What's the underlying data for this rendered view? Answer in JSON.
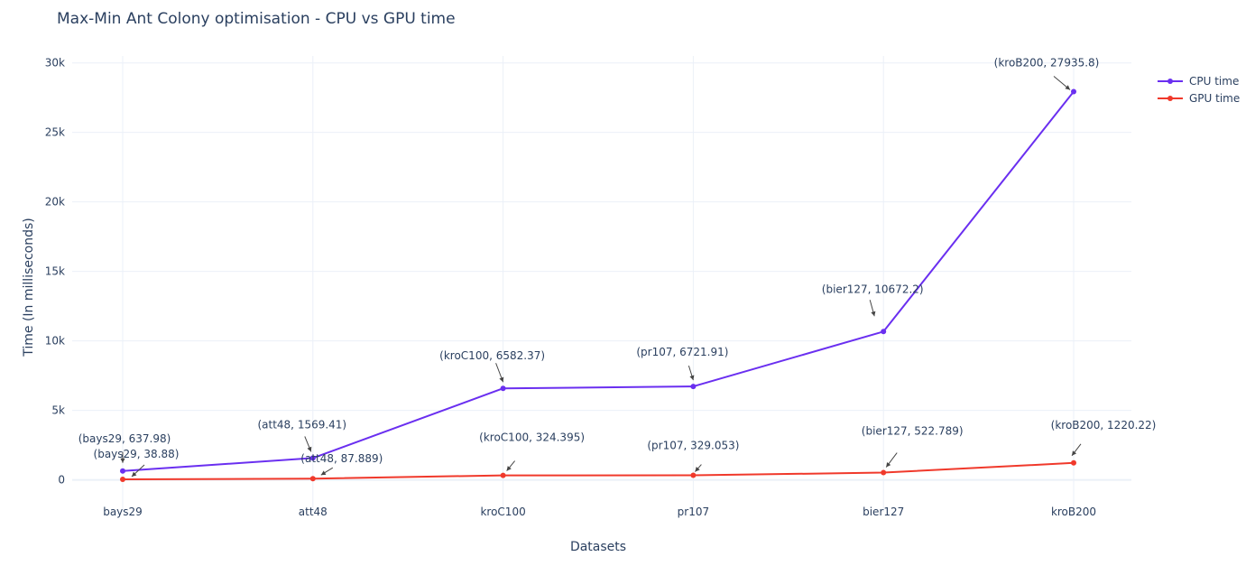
{
  "chart_data": {
    "type": "line",
    "title": "Max-Min Ant Colony optimisation - CPU vs GPU time",
    "xlabel": "Datasets",
    "ylabel": "Time (In milliseconds)",
    "categories": [
      "bays29",
      "att48",
      "kroC100",
      "pr107",
      "bier127",
      "kroB200"
    ],
    "ylim": [
      -2300,
      30500
    ],
    "yticks": [
      0,
      5000,
      10000,
      15000,
      20000,
      25000,
      30000
    ],
    "ytick_labels": [
      "0",
      "5k",
      "10k",
      "15k",
      "20k",
      "25k",
      "30k"
    ],
    "grid": true,
    "legend_position": "top-right",
    "series": [
      {
        "name": "CPU time",
        "color": "#6a2ff0",
        "values": [
          637.98,
          1569.41,
          6582.37,
          6721.91,
          10672.2,
          27935.8
        ]
      },
      {
        "name": "GPU time",
        "color": "#f0392b",
        "values": [
          38.88,
          87.889,
          324.395,
          329.053,
          522.789,
          1220.22
        ]
      }
    ],
    "annotations": [
      {
        "series": 0,
        "index": 0,
        "text": "(bays29, 637.98)"
      },
      {
        "series": 0,
        "index": 1,
        "text": "(att48, 1569.41)"
      },
      {
        "series": 0,
        "index": 2,
        "text": "(kroC100, 6582.37)"
      },
      {
        "series": 0,
        "index": 3,
        "text": "(pr107, 6721.91)"
      },
      {
        "series": 0,
        "index": 4,
        "text": "(bier127, 10672.2)"
      },
      {
        "series": 0,
        "index": 5,
        "text": "(kroB200, 27935.8)"
      },
      {
        "series": 1,
        "index": 0,
        "text": "(bays29, 38.88)"
      },
      {
        "series": 1,
        "index": 1,
        "text": "(att48, 87.889)"
      },
      {
        "series": 1,
        "index": 2,
        "text": "(kroC100, 324.395)"
      },
      {
        "series": 1,
        "index": 3,
        "text": "(pr107, 329.053)"
      },
      {
        "series": 1,
        "index": 4,
        "text": "(bier127, 522.789)"
      },
      {
        "series": 1,
        "index": 5,
        "text": "(kroB200, 1220.22)"
      }
    ]
  }
}
